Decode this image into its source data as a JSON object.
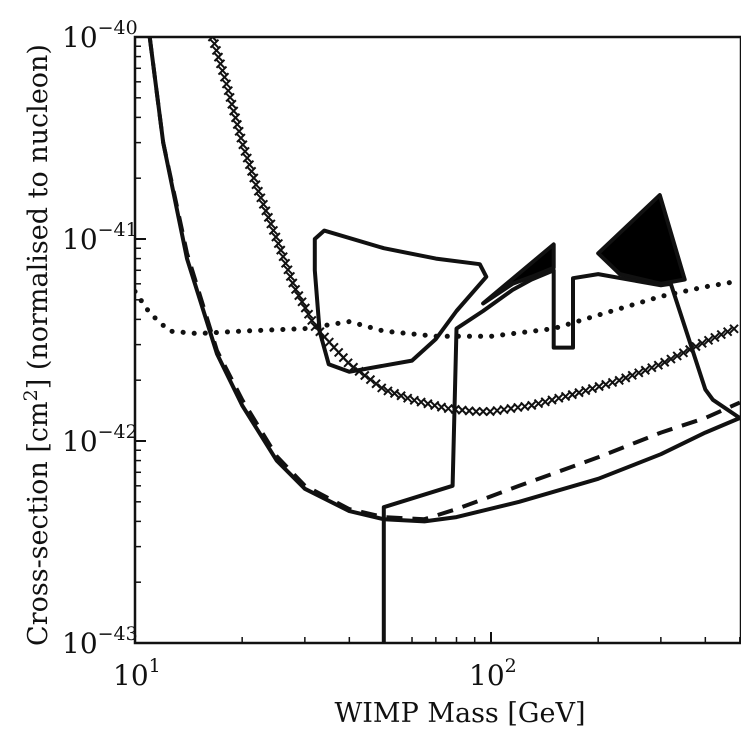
{
  "chart_data": {
    "type": "line",
    "title": "",
    "xlabel": "WIMP Mass [GeV]",
    "ylabel": "Cross-section [cm",
    "ylabel_sup": "2",
    "ylabel_rest": "] (normalised to nucleon)",
    "xscale": "log",
    "yscale": "log",
    "xlim": [
      10,
      500
    ],
    "ylim": [
      1e-43,
      1e-40
    ],
    "grid": false,
    "x_ticks": [
      {
        "value": 10,
        "base": "10",
        "exp": "1"
      },
      {
        "value": 100,
        "base": "10",
        "exp": "2"
      }
    ],
    "y_ticks": [
      {
        "value": 1e-40,
        "base": "10",
        "exp": "−40"
      },
      {
        "value": 1e-41,
        "base": "10",
        "exp": "−41"
      },
      {
        "value": 1e-42,
        "base": "10",
        "exp": "−42"
      },
      {
        "value": 1e-43,
        "base": "10",
        "exp": "−43"
      }
    ],
    "series": [
      {
        "style": "solid",
        "width": 4,
        "points": [
          [
            11,
            1e-40
          ],
          [
            12,
            3e-41
          ],
          [
            14,
            8e-42
          ],
          [
            17,
            2.7e-42
          ],
          [
            20,
            1.5e-42
          ],
          [
            25,
            8e-43
          ],
          [
            30,
            5.8e-43
          ],
          [
            40,
            4.5e-43
          ],
          [
            50,
            4.1e-43
          ],
          [
            65,
            4e-43
          ],
          [
            80,
            4.2e-43
          ],
          [
            120,
            5e-43
          ],
          [
            200,
            6.5e-43
          ],
          [
            300,
            8.6e-43
          ],
          [
            400,
            1.1e-42
          ],
          [
            500,
            1.3e-42
          ]
        ]
      },
      {
        "style": "dashed",
        "width": 4,
        "points": [
          [
            11,
            1e-40
          ],
          [
            12,
            3e-41
          ],
          [
            14,
            8.5e-42
          ],
          [
            17,
            2.8e-42
          ],
          [
            20,
            1.6e-42
          ],
          [
            25,
            8.4e-43
          ],
          [
            30,
            6e-43
          ],
          [
            40,
            4.6e-43
          ],
          [
            50,
            4.2e-43
          ],
          [
            65,
            4.1e-43
          ],
          [
            80,
            4.6e-43
          ],
          [
            120,
            6e-43
          ],
          [
            200,
            8.3e-43
          ],
          [
            300,
            1.1e-42
          ],
          [
            400,
            1.3e-42
          ],
          [
            500,
            1.55e-42
          ]
        ]
      },
      {
        "style": "dotted",
        "width": 4,
        "points": [
          [
            10,
            5.5e-42
          ],
          [
            11,
            4.3e-42
          ],
          [
            12.5,
            3.5e-42
          ],
          [
            15,
            3.4e-42
          ],
          [
            20,
            3.5e-42
          ],
          [
            30,
            3.6e-42
          ],
          [
            40,
            3.9e-42
          ],
          [
            50,
            3.5e-42
          ],
          [
            70,
            3.3e-42
          ],
          [
            100,
            3.3e-42
          ],
          [
            150,
            3.6e-42
          ],
          [
            200,
            4.2e-42
          ],
          [
            300,
            5.2e-42
          ],
          [
            400,
            5.8e-42
          ],
          [
            500,
            6.2e-42
          ]
        ]
      },
      {
        "style": "cross",
        "width": 2,
        "points": [
          [
            16.5,
            1e-40
          ],
          [
            18,
            6e-41
          ],
          [
            20,
            3e-41
          ],
          [
            22,
            1.8e-41
          ],
          [
            25,
            1e-41
          ],
          [
            28,
            5.8e-42
          ],
          [
            32,
            3.7e-42
          ],
          [
            40,
            2.4e-42
          ],
          [
            50,
            1.8e-42
          ],
          [
            60,
            1.6e-42
          ],
          [
            75,
            1.45e-42
          ],
          [
            90,
            1.4e-42
          ],
          [
            100,
            1.4e-42
          ],
          [
            130,
            1.5e-42
          ],
          [
            170,
            1.7e-42
          ],
          [
            230,
            2e-42
          ],
          [
            300,
            2.4e-42
          ],
          [
            400,
            3.1e-42
          ],
          [
            500,
            3.7e-42
          ]
        ]
      },
      {
        "style": "solid",
        "width": 4,
        "points": [
          [
            50,
            1e-43
          ],
          [
            50,
            4.7e-43
          ],
          [
            78,
            6e-43
          ],
          [
            80,
            3.6e-42
          ],
          [
            95,
            4.4e-42
          ],
          [
            115,
            5.6e-42
          ],
          [
            130,
            6.3e-42
          ],
          [
            150,
            7e-42
          ],
          [
            150,
            2.9e-42
          ],
          [
            170,
            2.9e-42
          ],
          [
            170,
            6.4e-42
          ],
          [
            200,
            6.7e-42
          ],
          [
            300,
            5.9e-42
          ],
          [
            320,
            6e-42
          ],
          [
            400,
            1.8e-42
          ],
          [
            420,
            1.6e-42
          ],
          [
            500,
            1.3e-42
          ]
        ]
      }
    ],
    "regions": [
      {
        "fill": "none",
        "points": [
          [
            32,
            1e-41
          ],
          [
            34,
            1.1e-41
          ],
          [
            50,
            9e-42
          ],
          [
            70,
            8e-42
          ],
          [
            93,
            7.5e-42
          ],
          [
            97,
            6.5e-42
          ],
          [
            80,
            4.4e-42
          ],
          [
            70,
            3.2e-42
          ],
          [
            60,
            2.5e-42
          ],
          [
            40,
            2.2e-42
          ],
          [
            35,
            2.4e-42
          ],
          [
            33,
            3.5e-42
          ],
          [
            32,
            7e-42
          ],
          [
            32,
            1e-41
          ]
        ]
      },
      {
        "fill": "#000000",
        "points": [
          [
            95,
            4.8e-42
          ],
          [
            150,
            9.4e-42
          ],
          [
            150,
            7.2e-42
          ],
          [
            130,
            6.5e-42
          ],
          [
            115,
            6e-42
          ],
          [
            95,
            4.8e-42
          ]
        ]
      },
      {
        "fill": "#000000",
        "points": [
          [
            200,
            8.5e-42
          ],
          [
            298,
            1.65e-41
          ],
          [
            350,
            6.3e-42
          ],
          [
            300,
            6e-42
          ],
          [
            230,
            6.7e-42
          ],
          [
            200,
            8.5e-42
          ]
        ]
      }
    ]
  }
}
